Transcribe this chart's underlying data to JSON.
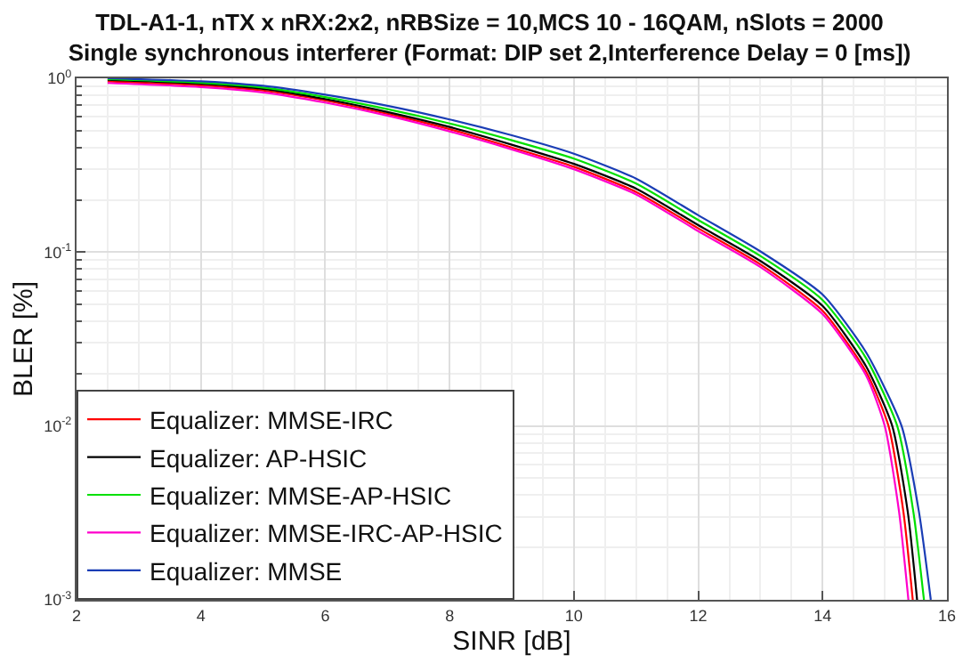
{
  "chart_data": {
    "type": "line",
    "title": "TDL-A1-1, nTX x nRX:2x2, nRBSize = 10,MCS 10 - 16QAM, nSlots = 2000",
    "subtitle": "Single synchronous interferer (Format: DIP set 2,Interference Delay = 0 [ms])",
    "xlabel": "SINR [dB]",
    "ylabel": "BLER [%]",
    "log": "y",
    "grid": true,
    "legend": "bottom left",
    "marker": "none",
    "line_style": "solid",
    "xlim": [
      2,
      16
    ],
    "xticks": [
      2,
      4,
      6,
      8,
      10,
      12,
      14,
      16
    ],
    "ylim": [
      0.001,
      1
    ],
    "yticks": [
      {
        "value": 0.001,
        "label": "10$^{-3}$"
      },
      {
        "value": 0.01,
        "label": "10$^{-2}$"
      },
      {
        "value": 0.1,
        "label": "10$^{-1}$"
      },
      {
        "value": 1,
        "label": "10$^{0}$"
      }
    ],
    "series": [
      {
        "name": "Equalizer: MMSE-IRC",
        "color": "#ff0000",
        "x": [
          2.5,
          4,
          5,
          6,
          7,
          8,
          9,
          10,
          11,
          12,
          13,
          14,
          14.7,
          15.06,
          15.3,
          15.45
        ],
        "values": [
          0.96,
          0.91,
          0.85,
          0.745,
          0.625,
          0.51,
          0.4,
          0.31,
          0.222,
          0.137,
          0.085,
          0.046,
          0.0205,
          0.01,
          0.0032,
          0.001
        ]
      },
      {
        "name": "Equalizer: AP-HSIC",
        "color": "#000000",
        "x": [
          2.5,
          4,
          5,
          6,
          7,
          8,
          9,
          10,
          11,
          12,
          13,
          14,
          14.7,
          15.12,
          15.37,
          15.52
        ],
        "values": [
          0.98,
          0.93,
          0.87,
          0.76,
          0.64,
          0.525,
          0.415,
          0.322,
          0.232,
          0.143,
          0.089,
          0.049,
          0.022,
          0.01,
          0.0032,
          0.001
        ]
      },
      {
        "name": "Equalizer: MMSE-AP-HSIC",
        "color": "#00e000",
        "x": [
          2.5,
          4,
          5,
          6,
          7,
          8,
          9,
          10,
          11,
          12,
          13,
          14,
          14.7,
          15.2,
          15.46,
          15.63
        ],
        "values": [
          0.99,
          0.945,
          0.885,
          0.78,
          0.665,
          0.55,
          0.44,
          0.345,
          0.248,
          0.153,
          0.095,
          0.053,
          0.0245,
          0.01,
          0.0032,
          0.001
        ]
      },
      {
        "name": "Equalizer: MMSE-IRC-AP-HSIC",
        "color": "#ff00cc",
        "x": [
          2.5,
          4,
          5,
          6,
          7,
          8,
          9,
          10,
          11,
          12,
          13,
          14,
          14.7,
          15.0,
          15.23,
          15.38
        ],
        "values": [
          0.94,
          0.89,
          0.83,
          0.725,
          0.61,
          0.495,
          0.39,
          0.3,
          0.215,
          0.132,
          0.082,
          0.044,
          0.0195,
          0.01,
          0.0032,
          0.001
        ]
      },
      {
        "name": "Equalizer: MMSE",
        "color": "#1a3db5",
        "x": [
          2.5,
          4,
          5,
          6,
          7,
          8,
          9,
          10,
          11,
          12,
          13,
          14,
          14.7,
          15.27,
          15.55,
          15.74
        ],
        "values": [
          1,
          0.96,
          0.905,
          0.805,
          0.695,
          0.58,
          0.47,
          0.368,
          0.265,
          0.163,
          0.101,
          0.057,
          0.0265,
          0.01,
          0.0032,
          0.001
        ]
      }
    ]
  }
}
